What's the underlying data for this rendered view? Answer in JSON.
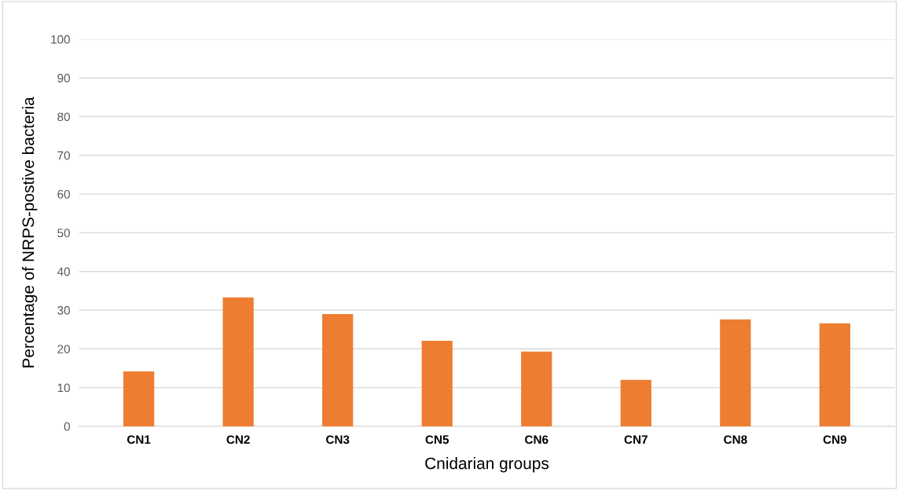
{
  "chart_data": {
    "type": "bar",
    "xlabel": "Cnidarian groups",
    "ylabel": "Percentage of NRPS-postive bacteria",
    "categories": [
      "CN1",
      "CN2",
      "CN3",
      "CN5",
      "CN6",
      "CN7",
      "CN8",
      "CN9"
    ],
    "values": [
      14.2,
      33.3,
      29.0,
      22.1,
      19.3,
      12.0,
      27.6,
      26.6
    ],
    "color": "#ed7d31",
    "ylim": [
      0,
      100
    ],
    "yticks": [
      0,
      10,
      20,
      30,
      40,
      50,
      60,
      70,
      80,
      90,
      100
    ],
    "grid": "y",
    "legend": false
  }
}
